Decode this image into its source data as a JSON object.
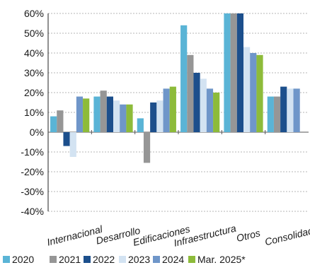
{
  "chart_data": {
    "type": "bar",
    "title": "",
    "xlabel": "",
    "ylabel": "",
    "categories": [
      "Internacional",
      "Desarrollo",
      "Edificaciones",
      "Infraestructura",
      "Otros",
      "Consolidado"
    ],
    "ylim": [
      -0.4,
      0.6
    ],
    "yticks": [
      0.6,
      0.5,
      0.4,
      0.3,
      0.2,
      0.1,
      0,
      -0.1,
      -0.2,
      -0.3,
      -0.4
    ],
    "ytick_labels": [
      "60%",
      "50%",
      "40%",
      "30%",
      "20%",
      "10%",
      "0%",
      "-10%",
      "-20%",
      "-30%",
      "-40%"
    ],
    "grid": true,
    "legend_position": "bottom",
    "series": [
      {
        "name": "2020",
        "color": "#5ab4d6",
        "values": [
          0.08,
          0.18,
          0.07,
          0.54,
          0.6,
          0.18
        ]
      },
      {
        "name": "2021",
        "color": "#969696",
        "values": [
          0.11,
          0.21,
          -0.155,
          0.39,
          0.6,
          0.18
        ]
      },
      {
        "name": "2022",
        "color": "#1c4f8c",
        "values": [
          -0.07,
          0.18,
          0.15,
          0.3,
          0.6,
          0.23
        ]
      },
      {
        "name": "2023",
        "color": "#d3e3f2",
        "values": [
          -0.125,
          0.16,
          0.16,
          0.27,
          0.43,
          0.22
        ]
      },
      {
        "name": "2024",
        "color": "#6f96c9",
        "values": [
          0.18,
          0.14,
          0.22,
          0.22,
          0.4,
          0.22
        ]
      },
      {
        "name": "Mar. 2025*",
        "color": "#8dbb3a",
        "values": [
          0.17,
          0.14,
          0.23,
          0.2,
          0.39,
          null
        ]
      }
    ]
  }
}
